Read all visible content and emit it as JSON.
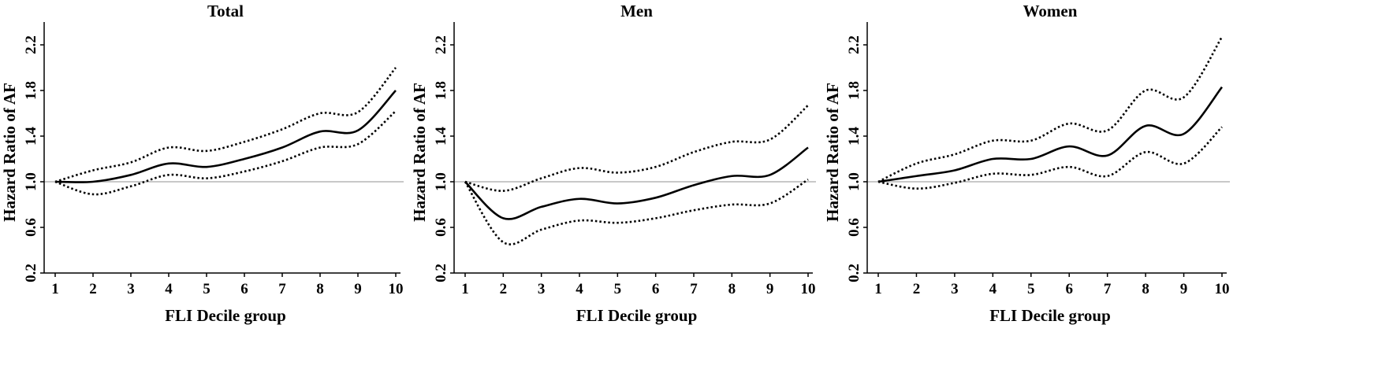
{
  "figure": {
    "background": "#ffffff"
  },
  "chart_data": [
    {
      "type": "line",
      "title": "Total",
      "xlabel": "FLI Decile group",
      "ylabel": "Hazard Ratio of AF",
      "x": [
        1,
        2,
        3,
        4,
        5,
        6,
        7,
        8,
        9,
        10
      ],
      "xlim": [
        1,
        10
      ],
      "ylim": [
        0.2,
        2.4
      ],
      "xticks": [
        "1",
        "2",
        "3",
        "4",
        "5",
        "6",
        "7",
        "8",
        "9",
        "10"
      ],
      "yticks": [
        "0.2",
        "0.6",
        "1.0",
        "1.4",
        "1.8",
        "2.2"
      ],
      "reference_line": 1.0,
      "grid": false,
      "series": [
        {
          "style": "solid",
          "values": [
            1.0,
            1.0,
            1.06,
            1.16,
            1.13,
            1.2,
            1.3,
            1.44,
            1.45,
            1.8
          ]
        },
        {
          "style": "dotted",
          "values": [
            1.0,
            1.1,
            1.17,
            1.3,
            1.27,
            1.35,
            1.46,
            1.6,
            1.61,
            2.0
          ]
        },
        {
          "style": "dotted",
          "values": [
            1.0,
            0.89,
            0.96,
            1.06,
            1.03,
            1.09,
            1.18,
            1.3,
            1.33,
            1.62
          ]
        }
      ]
    },
    {
      "type": "line",
      "title": "Men",
      "xlabel": "FLI Decile group",
      "ylabel": "Hazard Ratio of AF",
      "x": [
        1,
        2,
        3,
        4,
        5,
        6,
        7,
        8,
        9,
        10
      ],
      "xlim": [
        1,
        10
      ],
      "ylim": [
        0.2,
        2.4
      ],
      "xticks": [
        "1",
        "2",
        "3",
        "4",
        "5",
        "6",
        "7",
        "8",
        "9",
        "10"
      ],
      "yticks": [
        "0.2",
        "0.6",
        "1.0",
        "1.4",
        "1.8",
        "2.2"
      ],
      "reference_line": 1.0,
      "grid": false,
      "series": [
        {
          "style": "solid",
          "values": [
            1.0,
            0.68,
            0.78,
            0.85,
            0.81,
            0.86,
            0.97,
            1.05,
            1.06,
            1.3
          ]
        },
        {
          "style": "dotted",
          "values": [
            1.0,
            0.92,
            1.03,
            1.12,
            1.08,
            1.13,
            1.26,
            1.35,
            1.37,
            1.67
          ]
        },
        {
          "style": "dotted",
          "values": [
            1.0,
            0.47,
            0.58,
            0.66,
            0.64,
            0.68,
            0.75,
            0.8,
            0.81,
            1.02
          ]
        }
      ]
    },
    {
      "type": "line",
      "title": "Women",
      "xlabel": "FLI Decile group",
      "ylabel": "Hazard Ratio of AF",
      "x": [
        1,
        2,
        3,
        4,
        5,
        6,
        7,
        8,
        9,
        10
      ],
      "xlim": [
        1,
        10
      ],
      "ylim": [
        0.2,
        2.4
      ],
      "xticks": [
        "1",
        "2",
        "3",
        "4",
        "5",
        "6",
        "7",
        "8",
        "9",
        "10"
      ],
      "yticks": [
        "0.2",
        "0.6",
        "1.0",
        "1.4",
        "1.8",
        "2.2"
      ],
      "reference_line": 1.0,
      "grid": false,
      "series": [
        {
          "style": "solid",
          "values": [
            1.0,
            1.05,
            1.1,
            1.2,
            1.2,
            1.31,
            1.23,
            1.49,
            1.42,
            1.83
          ]
        },
        {
          "style": "dotted",
          "values": [
            1.0,
            1.16,
            1.24,
            1.36,
            1.36,
            1.51,
            1.45,
            1.8,
            1.74,
            2.27
          ]
        },
        {
          "style": "dotted",
          "values": [
            1.0,
            0.94,
            0.99,
            1.07,
            1.06,
            1.13,
            1.05,
            1.26,
            1.16,
            1.48
          ]
        }
      ]
    }
  ]
}
